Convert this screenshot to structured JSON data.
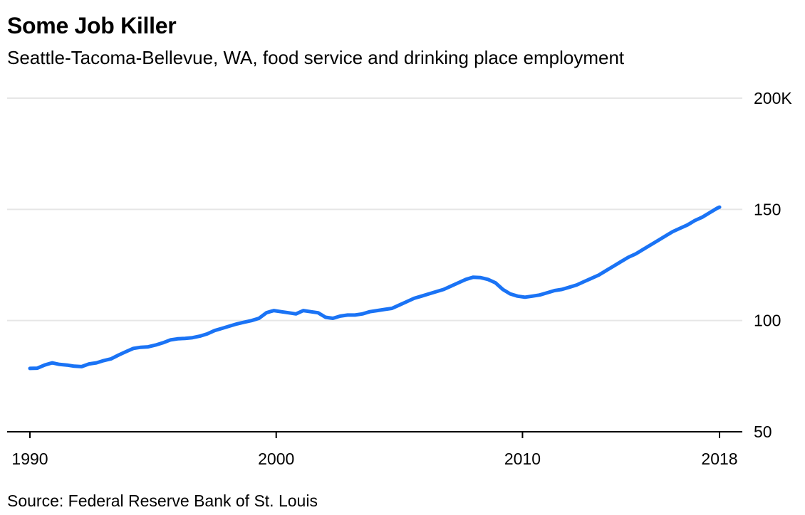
{
  "title": "Some Job Killer",
  "subtitle": "Seattle-Tacoma-Bellevue, WA, food service and drinking place employment",
  "source": "Source: Federal Reserve Bank of St. Louis",
  "colors": {
    "line": "#1a73f5",
    "grid": "#e6e6e6",
    "axis": "#000000"
  },
  "chart_data": {
    "type": "line",
    "title": "Some Job Killer",
    "subtitle": "Seattle-Tacoma-Bellevue, WA, food service and drinking place employment",
    "xlabel": "",
    "ylabel": "",
    "xlim": [
      1990,
      2018.2
    ],
    "ylim": [
      50,
      200
    ],
    "y_ticks": [
      {
        "value": 200,
        "label": "200K"
      },
      {
        "value": 150,
        "label": "150"
      },
      {
        "value": 100,
        "label": "100"
      },
      {
        "value": 50,
        "label": "50"
      }
    ],
    "x_ticks": [
      {
        "value": 1990,
        "label": "1990"
      },
      {
        "value": 2000,
        "label": "2000"
      },
      {
        "value": 2010,
        "label": "2010"
      },
      {
        "value": 2018,
        "label": "2018"
      }
    ],
    "grid": true,
    "legend": "none",
    "series": [
      {
        "values_x": [
          1990.0,
          1990.3,
          1990.6,
          1990.9,
          1991.2,
          1991.5,
          1991.8,
          1992.1,
          1992.4,
          1992.7,
          1993.0,
          1993.3,
          1993.6,
          1993.9,
          1994.2,
          1994.5,
          1994.8,
          1995.1,
          1995.4,
          1995.7,
          1996.0,
          1996.3,
          1996.6,
          1996.9,
          1997.2,
          1997.5,
          1997.8,
          1998.1,
          1998.4,
          1998.7,
          1999.0,
          1999.3,
          1999.6,
          1999.9,
          2000.2,
          2000.5,
          2000.8,
          2001.1,
          2001.4,
          2001.7,
          2002.0,
          2002.3,
          2002.6,
          2002.9,
          2003.2,
          2003.5,
          2003.8,
          2004.1,
          2004.4,
          2004.7,
          2005.0,
          2005.3,
          2005.6,
          2005.9,
          2006.2,
          2006.5,
          2006.8,
          2007.1,
          2007.4,
          2007.7,
          2008.0,
          2008.3,
          2008.6,
          2008.9,
          2009.2,
          2009.5,
          2009.8,
          2010.1,
          2010.4,
          2010.7,
          2011.0,
          2011.3,
          2011.6,
          2011.9,
          2012.2,
          2012.5,
          2012.8,
          2013.1,
          2013.4,
          2013.7,
          2014.0,
          2014.3,
          2014.6,
          2014.9,
          2015.2,
          2015.5,
          2015.8,
          2016.1,
          2016.4,
          2016.7,
          2017.0,
          2017.3,
          2017.6,
          2017.9,
          2018.0
        ],
        "values": [
          78.5,
          78.6,
          80.0,
          81.0,
          80.3,
          80.0,
          79.5,
          79.3,
          80.5,
          81.0,
          82.0,
          82.8,
          84.5,
          86.0,
          87.5,
          88.0,
          88.2,
          89.0,
          90.0,
          91.3,
          91.8,
          92.0,
          92.3,
          93.0,
          94.0,
          95.5,
          96.5,
          97.5,
          98.5,
          99.3,
          100.0,
          101.0,
          103.5,
          104.5,
          104.0,
          103.5,
          103.0,
          104.5,
          104.0,
          103.5,
          101.5,
          101.0,
          102.0,
          102.5,
          102.5,
          103.0,
          104.0,
          104.5,
          105.0,
          105.5,
          107.0,
          108.5,
          110.0,
          111.0,
          112.0,
          113.0,
          114.0,
          115.5,
          117.0,
          118.5,
          119.5,
          119.3,
          118.5,
          117.0,
          114.0,
          112.0,
          111.0,
          110.5,
          111.0,
          111.5,
          112.5,
          113.5,
          114.0,
          115.0,
          116.0,
          117.5,
          119.0,
          120.5,
          122.5,
          124.5,
          126.5,
          128.5,
          130.0,
          132.0,
          134.0,
          136.0,
          138.0,
          140.0,
          141.5,
          143.0,
          145.0,
          146.5,
          148.5,
          150.5,
          151.0
        ]
      }
    ]
  }
}
